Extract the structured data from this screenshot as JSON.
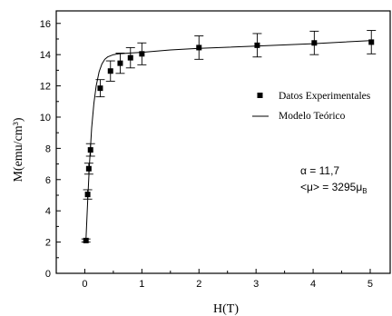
{
  "chart_data": {
    "type": "scatter",
    "xlabel": "H(T)",
    "ylabel": "M(emu/cm³)",
    "xlim": [
      -0.5,
      5.35
    ],
    "ylim": [
      0,
      16.8
    ],
    "xticks": [
      0,
      1,
      2,
      3,
      4,
      5
    ],
    "yticks": [
      0,
      2,
      4,
      6,
      8,
      10,
      12,
      14,
      16
    ],
    "grid": false,
    "legend_position": "right",
    "series": [
      {
        "name": "Datos Experimentales",
        "kind": "points-with-errorbars",
        "color": "#000000",
        "points": [
          {
            "x": 0.02,
            "y": 2.1,
            "err": 0.1
          },
          {
            "x": 0.05,
            "y": 5.05,
            "err": 0.3
          },
          {
            "x": 0.07,
            "y": 6.7,
            "err": 0.35
          },
          {
            "x": 0.1,
            "y": 7.9,
            "err": 0.4
          },
          {
            "x": 0.27,
            "y": 11.85,
            "err": 0.55
          },
          {
            "x": 0.45,
            "y": 12.95,
            "err": 0.65
          },
          {
            "x": 0.62,
            "y": 13.45,
            "err": 0.65
          },
          {
            "x": 0.8,
            "y": 13.8,
            "err": 0.65
          },
          {
            "x": 1.0,
            "y": 14.05,
            "err": 0.7
          },
          {
            "x": 2.0,
            "y": 14.45,
            "err": 0.75
          },
          {
            "x": 3.02,
            "y": 14.6,
            "err": 0.75
          },
          {
            "x": 4.02,
            "y": 14.75,
            "err": 0.75
          },
          {
            "x": 5.02,
            "y": 14.8,
            "err": 0.75
          }
        ]
      },
      {
        "name": "Modelo Teórico",
        "kind": "line",
        "color": "#000000",
        "x": [
          0.02,
          0.05,
          0.08,
          0.12,
          0.16,
          0.2,
          0.25,
          0.3,
          0.35,
          0.4,
          0.5,
          0.6,
          0.8,
          1.0,
          1.5,
          2.0,
          3.0,
          4.0,
          5.0
        ],
        "values": [
          2.1,
          4.6,
          6.9,
          9.3,
          10.9,
          12.0,
          12.9,
          13.4,
          13.7,
          13.85,
          14.0,
          14.05,
          14.1,
          14.15,
          14.3,
          14.4,
          14.55,
          14.7,
          14.9
        ]
      }
    ],
    "annotation": {
      "alpha_symbol": "α",
      "alpha_text": " = 11,7",
      "mu_prefix": "<",
      "mu_symbol": "μ",
      "mu_text": "> = 3295",
      "mu_unit": "μ",
      "mu_unit_sub": "B"
    }
  }
}
